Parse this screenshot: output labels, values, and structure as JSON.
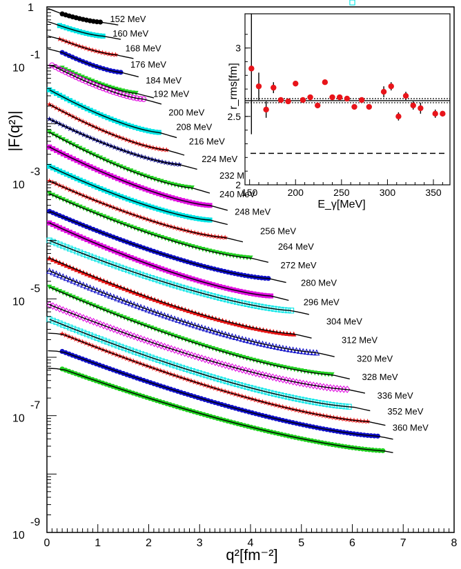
{
  "chart_data": [
    {
      "type": "scatter",
      "xlabel": "q²[fm⁻²]",
      "ylabel": "|F(q²)|",
      "xlim": [
        0,
        8
      ],
      "ylim_log10": [
        -9,
        0
      ],
      "y_scale": "log",
      "x_ticks": [
        0,
        1,
        2,
        3,
        4,
        5,
        6,
        7,
        8
      ],
      "y_tick_labels": [
        {
          "base": "1",
          "exp": ""
        },
        {
          "base": "10",
          "exp": "-1"
        },
        {
          "base": "10",
          "exp": "-3"
        },
        {
          "base": "10",
          "exp": "-5"
        },
        {
          "base": "10",
          "exp": "-7"
        },
        {
          "base": "10",
          "exp": "-9"
        }
      ],
      "series": [
        {
          "name": "152 MeV",
          "color": "#000000",
          "marker": "circle",
          "x_min": 0.3,
          "x_max": 1.05,
          "y_start_log10": -0.12,
          "y_end_log10": -0.26,
          "label_log10": -0.2,
          "fit": true
        },
        {
          "name": "160 MeV",
          "color": "#00e5e5",
          "marker": "square",
          "x_min": 0.25,
          "x_max": 1.1,
          "y_start_log10": -0.32,
          "y_end_log10": -0.5,
          "label_log10": -0.45,
          "fit": true
        },
        {
          "name": "168 MeV",
          "color": "#e51010",
          "marker": "star",
          "x_min": 0.25,
          "x_max": 1.35,
          "y_start_log10": -0.55,
          "y_end_log10": -0.82,
          "label_log10": -0.7,
          "fit": true
        },
        {
          "name": "176 MeV",
          "color": "#1010c8",
          "marker": "circle",
          "x_min": 0.3,
          "x_max": 1.45,
          "y_start_log10": -0.78,
          "y_end_log10": -1.12,
          "label_log10": -0.98,
          "fit": true
        },
        {
          "name": "184 MeV",
          "color": "#20d020",
          "marker": "triangle-down",
          "x_min": 0.3,
          "x_max": 1.75,
          "y_start_log10": -1.05,
          "y_end_log10": -1.48,
          "label_log10": -1.25,
          "fit": true
        },
        {
          "name": "192 MeV",
          "color": "#e010e0",
          "marker": "circle-open",
          "x_min": 0.1,
          "x_max": 1.9,
          "y_start_log10": -1.0,
          "y_end_log10": -1.58,
          "label_log10": -1.48,
          "fit": true
        },
        {
          "name": "200 MeV",
          "color": "#00e5e5",
          "marker": "square",
          "x_min": 0.05,
          "x_max": 2.2,
          "y_start_log10": -1.42,
          "y_end_log10": -2.15,
          "label_log10": -1.8,
          "fit": true
        },
        {
          "name": "208 MeV",
          "color": "#e51010",
          "marker": "star",
          "x_min": 0.05,
          "x_max": 2.35,
          "y_start_log10": -1.67,
          "y_end_log10": -2.45,
          "label_log10": -2.05,
          "fit": true
        },
        {
          "name": "216 MeV",
          "color": "#000080",
          "marker": "star",
          "x_min": 0.05,
          "x_max": 2.6,
          "y_start_log10": -1.92,
          "y_end_log10": -2.7,
          "label_log10": -2.3,
          "fit": true
        },
        {
          "name": "224 MeV",
          "color": "#20d020",
          "marker": "triangle-down",
          "x_min": 0.05,
          "x_max": 2.85,
          "y_start_log10": -2.15,
          "y_end_log10": -3.1,
          "label_log10": -2.6,
          "fit": true
        },
        {
          "name": "232 MeV",
          "color": "#e010e0",
          "marker": "square",
          "x_min": 0.05,
          "x_max": 3.2,
          "y_start_log10": -2.4,
          "y_end_log10": -3.4,
          "label_log10": -2.88,
          "fit": true
        },
        {
          "name": "240 MeV",
          "color": "#00e5e5",
          "marker": "square",
          "x_min": 0.05,
          "x_max": 3.2,
          "y_start_log10": -2.73,
          "y_end_log10": -3.65,
          "label_log10": -3.2,
          "fit": true
        },
        {
          "name": "248 MeV",
          "color": "#e51010",
          "marker": "star",
          "x_min": 0.05,
          "x_max": 3.5,
          "y_start_log10": -2.98,
          "y_end_log10": -3.95,
          "label_log10": -3.5,
          "fit": true
        },
        {
          "name": "256 MeV",
          "color": "#20d020",
          "marker": "triangle-down",
          "x_min": 0.05,
          "x_max": 4.0,
          "y_start_log10": -3.2,
          "y_end_log10": -4.3,
          "label_log10": -3.83,
          "fit": true
        },
        {
          "name": "264 MeV",
          "color": "#1010c8",
          "marker": "circle",
          "x_min": 0.05,
          "x_max": 4.35,
          "y_start_log10": -3.5,
          "y_end_log10": -4.65,
          "label_log10": -4.1,
          "fit": true
        },
        {
          "name": "272 MeV",
          "color": "#e010e0",
          "marker": "square",
          "x_min": 0.05,
          "x_max": 4.4,
          "y_start_log10": -3.7,
          "y_end_log10": -4.95,
          "label_log10": -4.42,
          "fit": true
        },
        {
          "name": "280 MeV",
          "color": "#00e5e5",
          "marker": "square-open",
          "x_min": 0.05,
          "x_max": 4.8,
          "y_start_log10": -4.0,
          "y_end_log10": -5.2,
          "label_log10": -4.72,
          "fit": true
        },
        {
          "name": "296 MeV",
          "color": "#e51010",
          "marker": "triangle-up",
          "x_min": 0.05,
          "x_max": 4.85,
          "y_start_log10": -4.3,
          "y_end_log10": -5.6,
          "label_log10": -5.05,
          "fit": true
        },
        {
          "name": "304 MeV",
          "color": "#1010c8",
          "marker": "triangle-up-open",
          "x_min": 0.05,
          "x_max": 5.3,
          "y_start_log10": -4.52,
          "y_end_log10": -5.92,
          "label_log10": -5.38,
          "fit": true
        },
        {
          "name": "312 MeV",
          "color": "#20d020",
          "marker": "triangle-down",
          "x_min": 0.05,
          "x_max": 5.6,
          "y_start_log10": -4.8,
          "y_end_log10": -6.3,
          "label_log10": -5.7,
          "fit": true
        },
        {
          "name": "320 MeV",
          "color": "#e010e0",
          "marker": "diamond-open",
          "x_min": 0.05,
          "x_max": 5.9,
          "y_start_log10": -5.1,
          "y_end_log10": -6.55,
          "label_log10": -6.02,
          "fit": true
        },
        {
          "name": "328 MeV",
          "color": "#00e5e5",
          "marker": "square-open",
          "x_min": 0.05,
          "x_max": 6.0,
          "y_start_log10": -5.35,
          "y_end_log10": -6.85,
          "label_log10": -6.33,
          "fit": true
        },
        {
          "name": "336 MeV",
          "color": "#e51010",
          "marker": "star",
          "x_min": 0.3,
          "x_max": 6.3,
          "y_start_log10": -5.6,
          "y_end_log10": -7.1,
          "label_log10": -6.65,
          "fit": true
        },
        {
          "name": "352 MeV",
          "color": "#1010c8",
          "marker": "circle",
          "x_min": 0.3,
          "x_max": 6.5,
          "y_start_log10": -5.9,
          "y_end_log10": -7.35,
          "label_log10": -6.92,
          "fit": true
        },
        {
          "name": "360 MeV",
          "color": "#20d020",
          "marker": "circle",
          "x_min": 0.3,
          "x_max": 6.6,
          "y_start_log10": -6.2,
          "y_end_log10": -7.6,
          "label_log10": -7.2,
          "fit": true
        }
      ]
    },
    {
      "type": "scatter",
      "xlabel": "E_γ[MeV]",
      "ylabel": "r_rms[fm]",
      "xlim": [
        145,
        368
      ],
      "ylim": [
        2.0,
        3.25
      ],
      "x_ticks": [
        150,
        200,
        250,
        300,
        350
      ],
      "y_ticks": [
        2,
        2.5,
        3
      ],
      "y_tick_labels": [
        "2",
        "2.5",
        "3"
      ],
      "points": [
        {
          "x": 152,
          "y": 2.85,
          "err": 0.48
        },
        {
          "x": 160,
          "y": 2.72,
          "err": 0.1
        },
        {
          "x": 168,
          "y": 2.55,
          "err": 0.06
        },
        {
          "x": 176,
          "y": 2.71,
          "err": 0.04
        },
        {
          "x": 184,
          "y": 2.62,
          "err": 0.02
        },
        {
          "x": 192,
          "y": 2.61,
          "err": 0.02
        },
        {
          "x": 200,
          "y": 2.74,
          "err": 0.02
        },
        {
          "x": 208,
          "y": 2.62,
          "err": 0.015
        },
        {
          "x": 216,
          "y": 2.64,
          "err": 0.015
        },
        {
          "x": 224,
          "y": 2.58,
          "err": 0.01
        },
        {
          "x": 232,
          "y": 2.75,
          "err": 0.01
        },
        {
          "x": 240,
          "y": 2.64,
          "err": 0.01
        },
        {
          "x": 248,
          "y": 2.64,
          "err": 0.01
        },
        {
          "x": 256,
          "y": 2.63,
          "err": 0.01
        },
        {
          "x": 264,
          "y": 2.57,
          "err": 0.01
        },
        {
          "x": 272,
          "y": 2.62,
          "err": 0.01
        },
        {
          "x": 280,
          "y": 2.57,
          "err": 0.01
        },
        {
          "x": 296,
          "y": 2.68,
          "err": 0.04
        },
        {
          "x": 304,
          "y": 2.72,
          "err": 0.03
        },
        {
          "x": 312,
          "y": 2.5,
          "err": 0.03
        },
        {
          "x": 320,
          "y": 2.65,
          "err": 0.03
        },
        {
          "x": 328,
          "y": 2.58,
          "err": 0.03
        },
        {
          "x": 336,
          "y": 2.56,
          "err": 0.04
        },
        {
          "x": 352,
          "y": 2.52,
          "err": 0.03
        },
        {
          "x": 360,
          "y": 2.52,
          "err": 0.02
        }
      ],
      "mean_line": 2.615,
      "band": [
        2.6,
        2.63
      ],
      "reference_dashed": 2.23
    }
  ]
}
